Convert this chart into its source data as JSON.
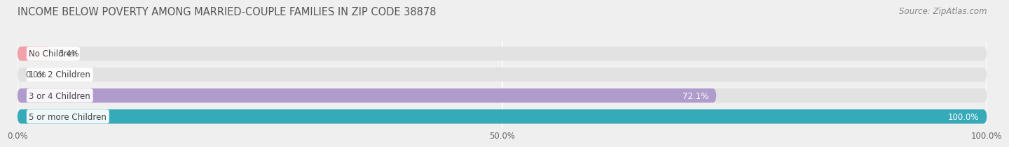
{
  "title": "INCOME BELOW POVERTY AMONG MARRIED-COUPLE FAMILIES IN ZIP CODE 38878",
  "source": "Source: ZipAtlas.com",
  "categories": [
    "No Children",
    "1 or 2 Children",
    "3 or 4 Children",
    "5 or more Children"
  ],
  "values": [
    3.4,
    0.0,
    72.1,
    100.0
  ],
  "bar_colors": [
    "#f2a0aa",
    "#aac4e8",
    "#b09ccc",
    "#35aab8"
  ],
  "x_ticks": [
    0.0,
    50.0,
    100.0
  ],
  "x_tick_labels": [
    "0.0%",
    "50.0%",
    "100.0%"
  ],
  "xlim": [
    0,
    100
  ],
  "background_color": "#efefef",
  "bar_background_color": "#e2e2e2",
  "title_color": "#555555",
  "source_color": "#888888",
  "title_fontsize": 10.5,
  "source_fontsize": 8.5,
  "value_fontsize": 8.5,
  "label_fontsize": 8.5,
  "tick_fontsize": 8.5,
  "bar_height": 0.68,
  "bar_label_inside_threshold": 10,
  "grid_color": "#ffffff",
  "label_box_color": "#ffffff",
  "label_text_color": "#444444",
  "value_inside_color": "#ffffff",
  "value_outside_color": "#666666"
}
